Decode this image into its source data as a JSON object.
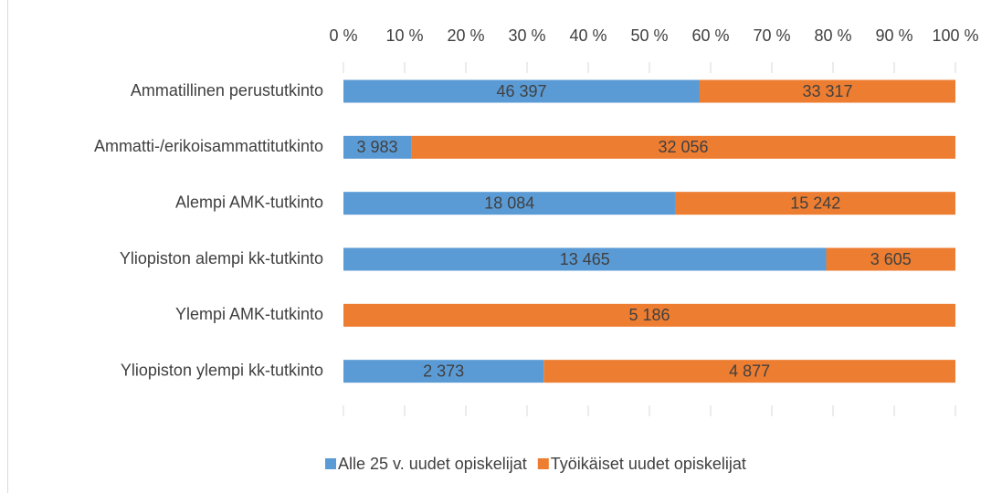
{
  "chart_data": {
    "type": "bar",
    "orientation": "horizontal",
    "stacked": "percent",
    "categories": [
      "Ammatillinen perustutkinto",
      "Ammatti-/erikoisammattitutkinto",
      "Alempi AMK-tutkinto",
      "Yliopiston alempi kk-tutkinto",
      "Ylempi AMK-tutkinto",
      "Yliopiston ylempi kk-tutkinto"
    ],
    "series": [
      {
        "name": "Alle 25 v. uudet opiskelijat",
        "color": "#5b9bd5",
        "values": [
          46397,
          3983,
          18084,
          13465,
          0,
          2373
        ],
        "value_labels": [
          "46 397",
          "3 983",
          "18 084",
          "13 465",
          "-",
          "2 373"
        ]
      },
      {
        "name": "Työikäiset uudet opiskelijat",
        "color": "#ed7d31",
        "values": [
          33317,
          32056,
          15242,
          3605,
          5186,
          4877
        ],
        "value_labels": [
          "33 317",
          "32 056",
          "15 242",
          "3 605",
          "5 186",
          "4 877"
        ]
      }
    ],
    "xlim": [
      0,
      100
    ],
    "xticks": [
      {
        "value": 0,
        "label": "0 %"
      },
      {
        "value": 10,
        "label": "10 %"
      },
      {
        "value": 20,
        "label": "20 %"
      },
      {
        "value": 30,
        "label": "30 %"
      },
      {
        "value": 40,
        "label": "40 %"
      },
      {
        "value": 50,
        "label": "50 %"
      },
      {
        "value": 60,
        "label": "60 %"
      },
      {
        "value": 70,
        "label": "70 %"
      },
      {
        "value": 80,
        "label": "80 %"
      },
      {
        "value": 90,
        "label": "90 %"
      },
      {
        "value": 100,
        "label": "100 %"
      }
    ],
    "legend": "bottom"
  }
}
